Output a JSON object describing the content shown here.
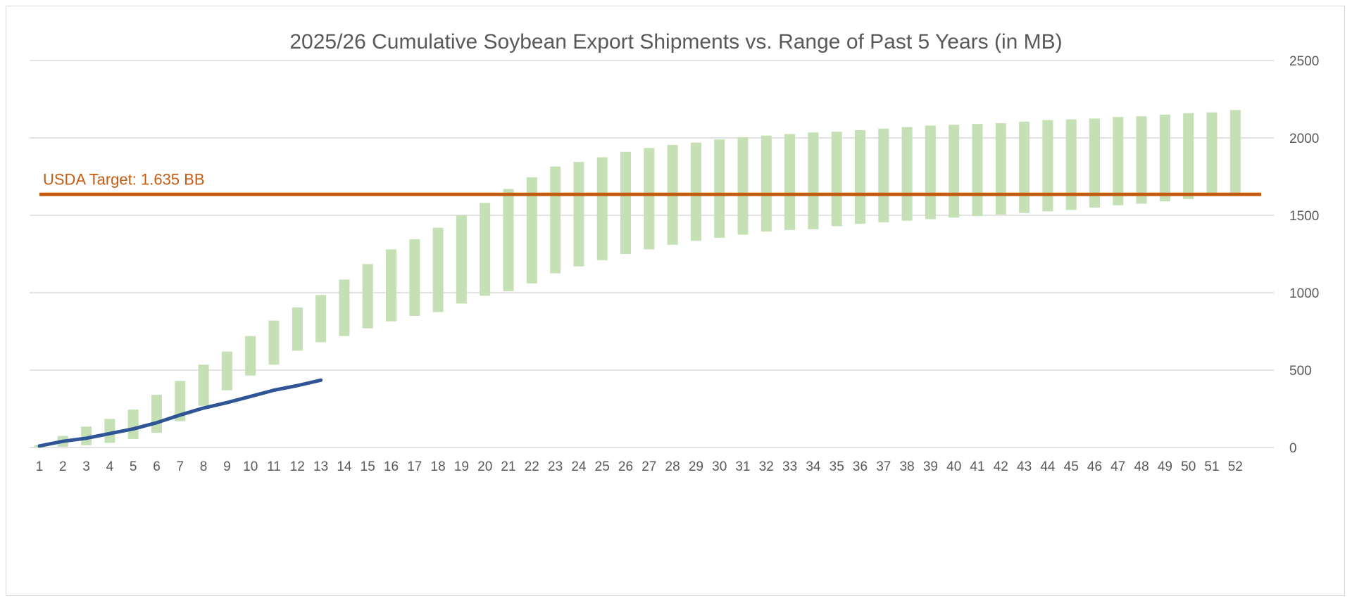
{
  "chart_data": {
    "type": "bar",
    "title": "2025/26 Cumulative Soybean Export Shipments vs. Range of Past 5 Years (in MB)",
    "xlabel": "",
    "ylabel": "",
    "x": [
      1,
      2,
      3,
      4,
      5,
      6,
      7,
      8,
      9,
      10,
      11,
      12,
      13,
      14,
      15,
      16,
      17,
      18,
      19,
      20,
      21,
      22,
      23,
      24,
      25,
      26,
      27,
      28,
      29,
      30,
      31,
      32,
      33,
      34,
      35,
      36,
      37,
      38,
      39,
      40,
      41,
      42,
      43,
      44,
      45,
      46,
      47,
      48,
      49,
      50,
      51,
      52
    ],
    "ylim": [
      0,
      2500
    ],
    "yticks": [
      0,
      500,
      1000,
      1500,
      2000,
      2500
    ],
    "y_axis_side": "right",
    "grid": true,
    "legend": "none",
    "range_series": {
      "low": [
        0,
        5,
        15,
        30,
        55,
        95,
        170,
        270,
        370,
        465,
        535,
        625,
        680,
        720,
        770,
        815,
        850,
        875,
        930,
        980,
        1010,
        1060,
        1125,
        1170,
        1210,
        1250,
        1280,
        1310,
        1335,
        1355,
        1375,
        1395,
        1405,
        1410,
        1430,
        1445,
        1455,
        1465,
        1475,
        1485,
        1495,
        1505,
        1515,
        1525,
        1535,
        1550,
        1565,
        1575,
        1590,
        1605,
        1625,
        1640
      ],
      "high": [
        15,
        75,
        135,
        185,
        245,
        340,
        430,
        535,
        620,
        720,
        820,
        905,
        985,
        1085,
        1185,
        1280,
        1345,
        1420,
        1500,
        1580,
        1670,
        1745,
        1815,
        1845,
        1875,
        1910,
        1935,
        1955,
        1970,
        1990,
        2005,
        2015,
        2025,
        2035,
        2040,
        2050,
        2060,
        2070,
        2080,
        2085,
        2090,
        2095,
        2105,
        2115,
        2120,
        2125,
        2135,
        2140,
        2150,
        2160,
        2165,
        2180
      ],
      "color": "#c5e0b4"
    },
    "line_series": {
      "x": [
        1,
        2,
        3,
        4,
        5,
        6,
        7,
        8,
        9,
        10,
        11,
        12,
        13
      ],
      "values": [
        10,
        40,
        60,
        90,
        120,
        160,
        210,
        255,
        290,
        330,
        370,
        400,
        435
      ],
      "color": "#2f5597"
    },
    "target_line": {
      "value": 1635,
      "label": "USDA Target: 1.635 BB",
      "color": "#c55a11"
    },
    "colors": {
      "grid": "#d9d9d9",
      "text": "#595959",
      "border": "#d9d9d9"
    }
  }
}
